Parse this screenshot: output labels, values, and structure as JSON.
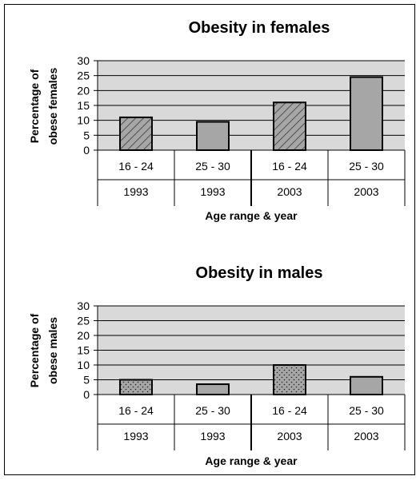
{
  "chart_data": [
    {
      "type": "bar",
      "title": "Obesity in females",
      "ylabel": "Percentage of obese females",
      "ylabel_lines": [
        "Percentage of",
        "obese females"
      ],
      "xlabel": "Age range & year",
      "ylim": [
        0,
        30
      ],
      "yticks": [
        0,
        5,
        10,
        15,
        20,
        25,
        30
      ],
      "grid": true,
      "categories": [
        {
          "age": "16 - 24",
          "year": "1993"
        },
        {
          "age": "25 - 30",
          "year": "1993"
        },
        {
          "age": "16 - 24",
          "year": "2003"
        },
        {
          "age": "25 - 30",
          "year": "2003"
        }
      ],
      "values": [
        11,
        9.5,
        16,
        24.5
      ],
      "patterns": [
        "hatch",
        "solid",
        "hatch",
        "solid"
      ]
    },
    {
      "type": "bar",
      "title": "Obesity in males",
      "ylabel": "Percentage of obese males",
      "ylabel_lines": [
        "Percentage of",
        "obese males"
      ],
      "xlabel": "Age range & year",
      "ylim": [
        0,
        30
      ],
      "yticks": [
        0,
        5,
        10,
        15,
        20,
        25,
        30
      ],
      "grid": true,
      "categories": [
        {
          "age": "16 - 24",
          "year": "1993"
        },
        {
          "age": "25 - 30",
          "year": "1993"
        },
        {
          "age": "16 - 24",
          "year": "2003"
        },
        {
          "age": "25 - 30",
          "year": "2003"
        }
      ],
      "values": [
        5,
        3.5,
        10,
        6
      ],
      "patterns": [
        "dots",
        "solid",
        "dots",
        "solid"
      ]
    }
  ],
  "colors": {
    "plot_background": "#d9d9d9",
    "bar_fill": "#a6a6a6",
    "grid": "#000000",
    "border": "#000000"
  }
}
